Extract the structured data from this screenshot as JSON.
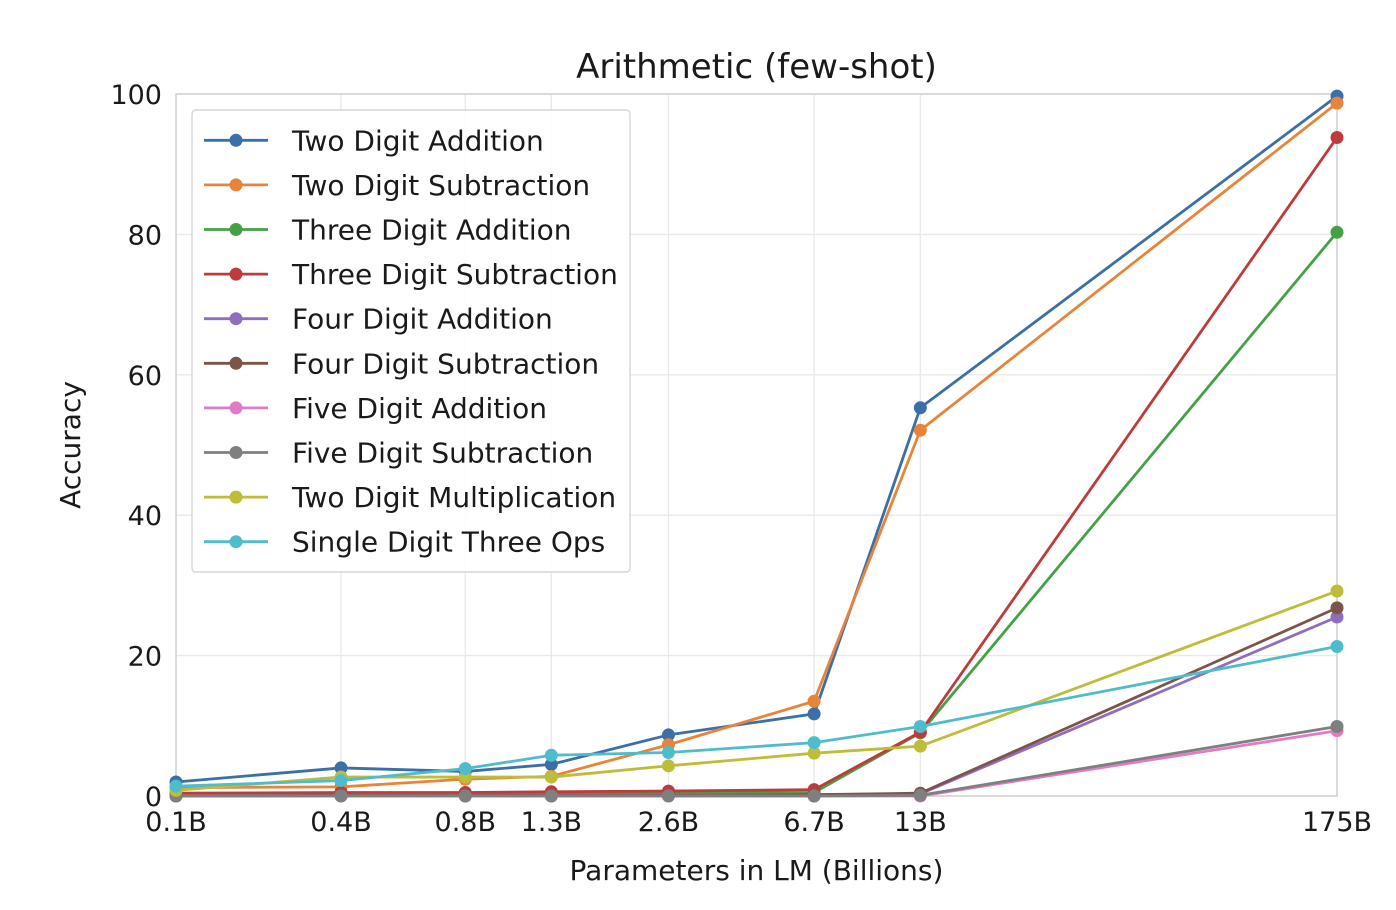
{
  "chart_data": {
    "type": "line",
    "title": "Arithmetic (few-shot)",
    "xlabel": "Parameters in LM (Billions)",
    "ylabel": "Accuracy",
    "x": [
      0.125,
      0.35,
      0.76,
      1.3,
      2.7,
      6.7,
      13,
      175
    ],
    "xticks": [
      "0.1B",
      "0.4B",
      "0.8B",
      "1.3B",
      "2.6B",
      "6.7B",
      "13B",
      "175B"
    ],
    "xscale": "log",
    "yticks": [
      "0",
      "20",
      "40",
      "60",
      "80",
      "100"
    ],
    "ylim": [
      0,
      100
    ],
    "grid": true,
    "legend_position": "upper-left",
    "series": [
      {
        "name": "Two Digit Addition",
        "color": "#3b6fa8",
        "values": [
          2.0,
          4.0,
          3.5,
          4.5,
          8.7,
          11.7,
          55.3,
          99.7
        ]
      },
      {
        "name": "Two Digit Subtraction",
        "color": "#e8843a",
        "values": [
          1.2,
          1.3,
          2.4,
          2.8,
          7.3,
          13.5,
          52.1,
          98.7
        ]
      },
      {
        "name": "Three Digit Addition",
        "color": "#45a047",
        "values": [
          0.3,
          0.3,
          0.3,
          0.3,
          0.4,
          0.5,
          9.0,
          80.3
        ]
      },
      {
        "name": "Three Digit Subtraction",
        "color": "#bf3b3b",
        "values": [
          0.4,
          0.5,
          0.5,
          0.6,
          0.7,
          0.9,
          9.1,
          93.8
        ]
      },
      {
        "name": "Four Digit Addition",
        "color": "#8f6ec0",
        "values": [
          0.0,
          0.1,
          0.1,
          0.1,
          0.1,
          0.2,
          0.3,
          25.5
        ]
      },
      {
        "name": "Four Digit Subtraction",
        "color": "#7d5449",
        "values": [
          0.0,
          0.1,
          0.1,
          0.1,
          0.1,
          0.2,
          0.4,
          26.8
        ]
      },
      {
        "name": "Five Digit Addition",
        "color": "#e17bc5",
        "values": [
          0.0,
          0.0,
          0.0,
          0.0,
          0.0,
          0.0,
          0.0,
          9.3
        ]
      },
      {
        "name": "Five Digit Subtraction",
        "color": "#7f7f7f",
        "values": [
          0.0,
          0.0,
          0.0,
          0.0,
          0.0,
          0.0,
          0.1,
          9.9
        ]
      },
      {
        "name": "Two Digit Multiplication",
        "color": "#bdbd3a",
        "values": [
          0.8,
          2.7,
          2.7,
          2.7,
          4.3,
          6.1,
          7.1,
          29.2
        ]
      },
      {
        "name": "Single Digit Three Ops",
        "color": "#4fbccc",
        "values": [
          1.4,
          2.2,
          3.9,
          5.8,
          6.2,
          7.6,
          9.9,
          21.3
        ]
      }
    ]
  }
}
